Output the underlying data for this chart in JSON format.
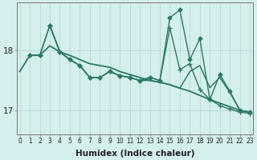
{
  "x": [
    0,
    1,
    2,
    3,
    4,
    5,
    6,
    7,
    8,
    9,
    10,
    11,
    12,
    13,
    14,
    15,
    16,
    17,
    18,
    19,
    20,
    21,
    22,
    23
  ],
  "series": [
    {
      "name": "smooth_line",
      "y": [
        17.65,
        17.92,
        17.92,
        18.08,
        17.98,
        17.92,
        17.85,
        17.78,
        17.75,
        17.72,
        17.65,
        17.6,
        17.55,
        17.5,
        17.47,
        17.43,
        17.37,
        17.32,
        17.25,
        17.18,
        17.12,
        17.06,
        17.0,
        16.97
      ],
      "color": "#2a7a62",
      "lw": 1.3,
      "marker": null,
      "ms": 0
    },
    {
      "name": "spiky_line_cross",
      "y": [
        null,
        17.92,
        17.92,
        18.42,
        17.98,
        17.85,
        17.75,
        17.55,
        17.55,
        17.65,
        17.58,
        17.55,
        17.5,
        17.55,
        17.5,
        18.38,
        17.68,
        17.78,
        17.35,
        17.18,
        17.08,
        17.02,
        16.97,
        16.95
      ],
      "color": "#2a7a62",
      "lw": 1.0,
      "marker": "+",
      "ms": 4.0
    },
    {
      "name": "spiky_line_diamond",
      "y": [
        null,
        17.92,
        17.92,
        18.42,
        17.98,
        17.85,
        17.75,
        17.55,
        17.55,
        17.65,
        17.58,
        17.55,
        17.5,
        17.55,
        17.5,
        18.55,
        18.68,
        17.85,
        18.2,
        17.18,
        17.6,
        17.32,
        17.0,
        16.97
      ],
      "color": "#2a7a62",
      "lw": 1.0,
      "marker": "D",
      "ms": 2.5
    },
    {
      "name": "declining_line",
      "y": [
        null,
        null,
        null,
        18.42,
        17.98,
        17.85,
        17.75,
        17.55,
        17.55,
        17.65,
        17.58,
        17.55,
        17.5,
        17.5,
        17.47,
        17.43,
        17.37,
        17.65,
        17.75,
        17.38,
        17.55,
        17.3,
        17.0,
        16.97
      ],
      "color": "#2a7a62",
      "lw": 1.1,
      "marker": null,
      "ms": 0
    }
  ],
  "xlabel": "Humidex (Indice chaleur)",
  "yticks": [
    17,
    18
  ],
  "ylim": [
    16.6,
    18.8
  ],
  "xlim": [
    -0.3,
    23.3
  ],
  "bg_color": "#d5eeee",
  "grid_color": "#b8d8d8",
  "tick_fontsize": 5.5,
  "xlabel_fontsize": 7.5
}
